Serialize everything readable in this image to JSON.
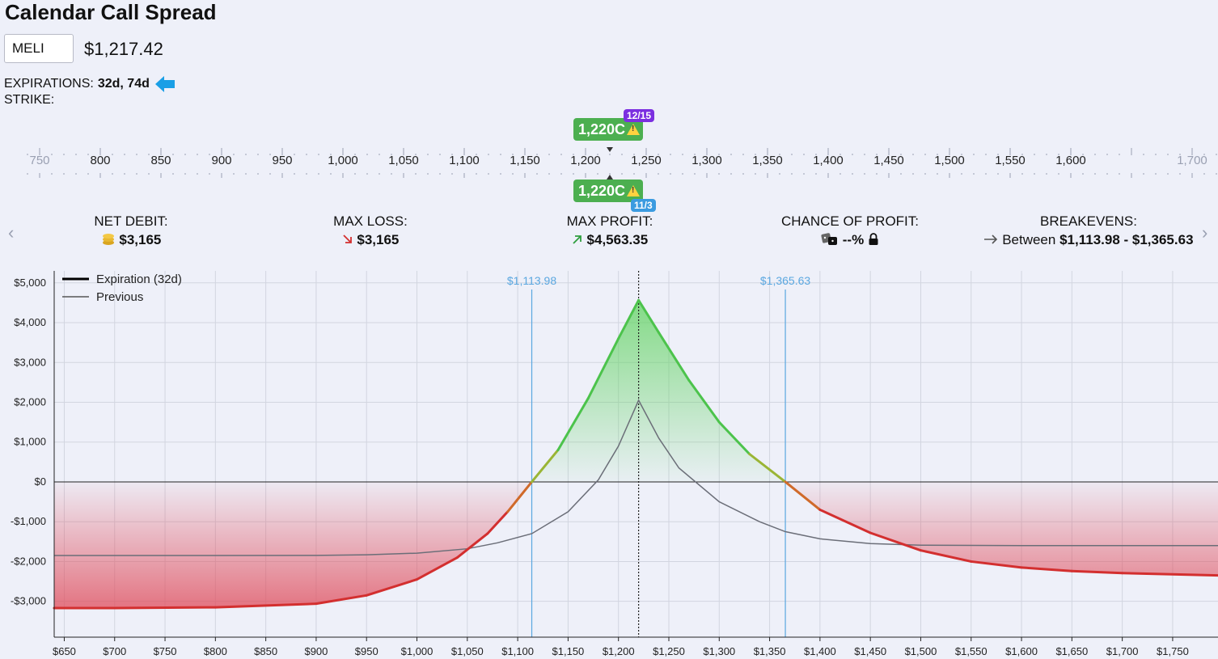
{
  "title": "Calendar Call Spread",
  "ticker": {
    "value": "MELI"
  },
  "price": "$1,217.42",
  "expirations": {
    "label": "EXPIRATIONS:",
    "value": "32d, 74d",
    "arrow_color": "#1a9fe6"
  },
  "strike": {
    "label": "STRIKE:",
    "scale_labels": [
      "750",
      "800",
      "850",
      "900",
      "950",
      "1,000",
      "1,050",
      "1,100",
      "1,150",
      "1,200",
      "1,250",
      "1,300",
      "1,350",
      "1,400",
      "1,450",
      "1,500",
      "1,550",
      "1,600",
      "1,700"
    ],
    "top_leg": {
      "label": "1,220C",
      "date": "12/15",
      "date_color": "#7b2fe0"
    },
    "bottom_leg": {
      "label": "1,220C",
      "date": "11/3",
      "date_color": "#3b9be0"
    }
  },
  "stats": {
    "net_debit": {
      "label": "NET DEBIT:",
      "value": "$3,165"
    },
    "max_loss": {
      "label": "MAX LOSS:",
      "value": "$3,165"
    },
    "max_profit": {
      "label": "MAX PROFIT:",
      "value": "$4,563.35"
    },
    "chance": {
      "label": "CHANCE OF PROFIT:",
      "value": "--%"
    },
    "breakevens": {
      "label": "BREAKEVENS:",
      "prefix": "Between",
      "value": "$1,113.98 - $1,365.63"
    }
  },
  "chart_data": {
    "type": "line",
    "legend": [
      {
        "name": "Expiration (32d)",
        "color": "#000000"
      },
      {
        "name": "Previous",
        "color": "#555555"
      }
    ],
    "x_ticks": [
      650,
      700,
      750,
      800,
      850,
      900,
      950,
      1000,
      1050,
      1100,
      1150,
      1200,
      1250,
      1300,
      1350,
      1400,
      1450,
      1500,
      1550,
      1600,
      1650,
      1700,
      1750
    ],
    "x_tick_labels": [
      "$650",
      "$700",
      "$750",
      "$800",
      "$850",
      "$900",
      "$950",
      "$1,000",
      "$1,050",
      "$1,100",
      "$1,150",
      "$1,200",
      "$1,250",
      "$1,300",
      "$1,350",
      "$1,400",
      "$1,450",
      "$1,500",
      "$1,550",
      "$1,600",
      "$1,650",
      "$1,700",
      "$1,750"
    ],
    "y_ticks": [
      5000,
      4000,
      3000,
      2000,
      1000,
      0,
      -1000,
      -2000,
      -3000
    ],
    "y_tick_labels": [
      "$5,000",
      "$4,000",
      "$3,000",
      "$2,000",
      "$1,000",
      "$0",
      "-$1,000",
      "-$2,000",
      "-$3,000"
    ],
    "xlim": [
      640,
      1795
    ],
    "ylim": [
      -3900,
      5300
    ],
    "breakevens": [
      {
        "x": 1113.98,
        "label": "$1,113.98"
      },
      {
        "x": 1365.63,
        "label": "$1,365.63"
      }
    ],
    "strike_line": 1220,
    "series": [
      {
        "name": "Expiration (32d)",
        "x": [
          640,
          700,
          800,
          900,
          950,
          1000,
          1040,
          1070,
          1090,
          1113.98,
          1140,
          1170,
          1200,
          1220,
          1240,
          1270,
          1300,
          1330,
          1365.63,
          1400,
          1450,
          1500,
          1550,
          1600,
          1650,
          1700,
          1795
        ],
        "y": [
          -3170,
          -3170,
          -3150,
          -3060,
          -2850,
          -2450,
          -1900,
          -1300,
          -750,
          0,
          800,
          2100,
          3600,
          4563,
          3750,
          2550,
          1500,
          700,
          0,
          -700,
          -1280,
          -1720,
          -2000,
          -2150,
          -2240,
          -2290,
          -2350
        ]
      },
      {
        "name": "Previous",
        "x": [
          640,
          700,
          800,
          900,
          950,
          1000,
          1050,
          1080,
          1113.98,
          1150,
          1180,
          1200,
          1220,
          1240,
          1260,
          1300,
          1340,
          1365.63,
          1400,
          1450,
          1500,
          1600,
          1700,
          1795
        ],
        "y": [
          -1850,
          -1850,
          -1850,
          -1845,
          -1830,
          -1790,
          -1680,
          -1530,
          -1300,
          -750,
          50,
          900,
          2050,
          1100,
          350,
          -500,
          -1000,
          -1250,
          -1430,
          -1550,
          -1590,
          -1600,
          -1600,
          -1600
        ]
      }
    ]
  }
}
